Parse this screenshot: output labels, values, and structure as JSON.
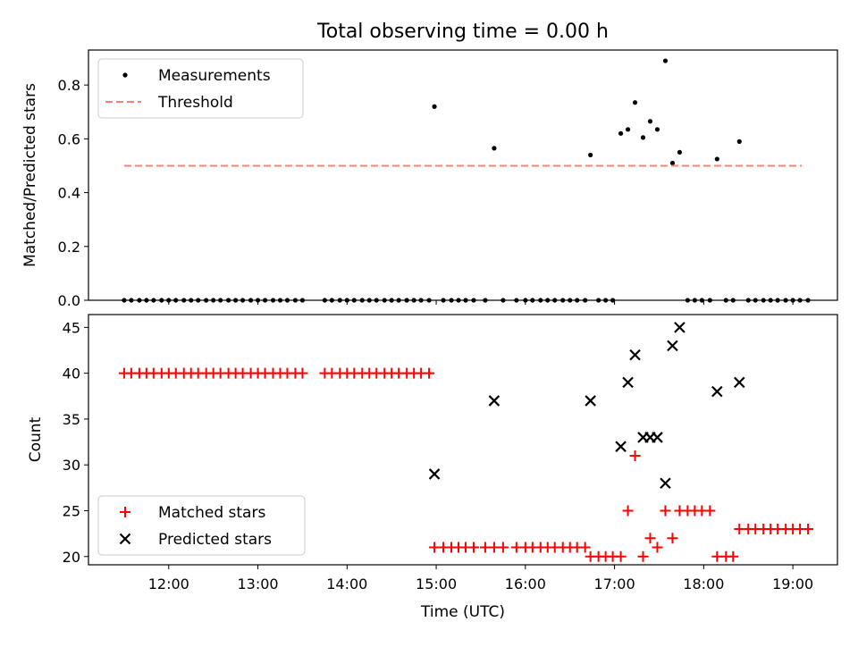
{
  "chart_data": [
    {
      "type": "scatter",
      "title": "Total observing time = 0.00 h",
      "ylabel": "Matched/Predicted stars",
      "xlabel": "",
      "ylim": [
        0,
        0.93
      ],
      "xlim": [
        11.1,
        19.5
      ],
      "yticks": [
        {
          "v": 0.0,
          "label": "0.0"
        },
        {
          "v": 0.2,
          "label": "0.2"
        },
        {
          "v": 0.4,
          "label": "0.4"
        },
        {
          "v": 0.6,
          "label": "0.6"
        },
        {
          "v": 0.8,
          "label": "0.8"
        }
      ],
      "legend": {
        "position": "top-left",
        "entries": [
          "Measurements",
          "Threshold"
        ]
      },
      "series": [
        {
          "name": "Measurements",
          "color": "#000000",
          "marker": "dot",
          "points": [
            [
              11.5,
              0
            ],
            [
              11.58,
              0
            ],
            [
              11.67,
              0
            ],
            [
              11.75,
              0
            ],
            [
              11.83,
              0
            ],
            [
              11.92,
              0
            ],
            [
              12.0,
              0
            ],
            [
              12.08,
              0
            ],
            [
              12.17,
              0
            ],
            [
              12.25,
              0
            ],
            [
              12.33,
              0
            ],
            [
              12.42,
              0
            ],
            [
              12.5,
              0
            ],
            [
              12.58,
              0
            ],
            [
              12.67,
              0
            ],
            [
              12.75,
              0
            ],
            [
              12.83,
              0
            ],
            [
              12.92,
              0
            ],
            [
              13.0,
              0
            ],
            [
              13.08,
              0
            ],
            [
              13.17,
              0
            ],
            [
              13.25,
              0
            ],
            [
              13.33,
              0
            ],
            [
              13.42,
              0
            ],
            [
              13.5,
              0
            ],
            [
              13.75,
              0
            ],
            [
              13.83,
              0
            ],
            [
              13.92,
              0
            ],
            [
              14.0,
              0
            ],
            [
              14.08,
              0
            ],
            [
              14.17,
              0
            ],
            [
              14.25,
              0
            ],
            [
              14.33,
              0
            ],
            [
              14.42,
              0
            ],
            [
              14.5,
              0
            ],
            [
              14.58,
              0
            ],
            [
              14.67,
              0
            ],
            [
              14.75,
              0
            ],
            [
              14.83,
              0
            ],
            [
              14.92,
              0
            ],
            [
              14.98,
              0.72
            ],
            [
              15.08,
              0
            ],
            [
              15.17,
              0
            ],
            [
              15.25,
              0
            ],
            [
              15.33,
              0
            ],
            [
              15.42,
              0
            ],
            [
              15.55,
              0
            ],
            [
              15.65,
              0.565
            ],
            [
              15.75,
              0
            ],
            [
              15.9,
              0
            ],
            [
              16.0,
              0
            ],
            [
              16.08,
              0
            ],
            [
              16.17,
              0
            ],
            [
              16.25,
              0
            ],
            [
              16.33,
              0
            ],
            [
              16.42,
              0
            ],
            [
              16.5,
              0
            ],
            [
              16.58,
              0
            ],
            [
              16.67,
              0
            ],
            [
              16.73,
              0.54
            ],
            [
              16.82,
              0
            ],
            [
              16.9,
              0
            ],
            [
              16.98,
              0
            ],
            [
              17.07,
              0.62
            ],
            [
              17.15,
              0.635
            ],
            [
              17.23,
              0.735
            ],
            [
              17.32,
              0.605
            ],
            [
              17.4,
              0.665
            ],
            [
              17.48,
              0.635
            ],
            [
              17.57,
              0.89
            ],
            [
              17.65,
              0.51
            ],
            [
              17.73,
              0.55
            ],
            [
              17.82,
              0
            ],
            [
              17.9,
              0
            ],
            [
              17.98,
              0
            ],
            [
              18.07,
              0
            ],
            [
              18.15,
              0.525
            ],
            [
              18.25,
              0
            ],
            [
              18.33,
              0
            ],
            [
              18.4,
              0.59
            ],
            [
              18.5,
              0
            ],
            [
              18.58,
              0
            ],
            [
              18.67,
              0
            ],
            [
              18.75,
              0
            ],
            [
              18.83,
              0
            ],
            [
              18.92,
              0
            ],
            [
              19.0,
              0
            ],
            [
              19.08,
              0
            ],
            [
              19.17,
              0
            ]
          ]
        },
        {
          "name": "Threshold",
          "color": "#ff7f7f",
          "style": "dashed",
          "x": [
            11.5,
            19.1
          ],
          "y": [
            0.5,
            0.5
          ]
        }
      ]
    },
    {
      "type": "scatter",
      "title": "",
      "xlabel": "Time (UTC)",
      "ylabel": "Count",
      "ylim": [
        19.1,
        46.4
      ],
      "xlim": [
        11.1,
        19.5
      ],
      "yticks": [
        {
          "v": 20,
          "label": "20"
        },
        {
          "v": 25,
          "label": "25"
        },
        {
          "v": 30,
          "label": "30"
        },
        {
          "v": 35,
          "label": "35"
        },
        {
          "v": 40,
          "label": "40"
        },
        {
          "v": 45,
          "label": "45"
        }
      ],
      "xticks": [
        {
          "v": 12,
          "label": "12:00"
        },
        {
          "v": 13,
          "label": "13:00"
        },
        {
          "v": 14,
          "label": "14:00"
        },
        {
          "v": 15,
          "label": "15:00"
        },
        {
          "v": 16,
          "label": "16:00"
        },
        {
          "v": 17,
          "label": "17:00"
        },
        {
          "v": 18,
          "label": "18:00"
        },
        {
          "v": 19,
          "label": "19:00"
        }
      ],
      "legend": {
        "position": "bottom-left",
        "entries": [
          "Matched stars",
          "Predicted stars"
        ]
      },
      "series": [
        {
          "name": "Matched stars",
          "color": "#ff0000",
          "marker": "plus",
          "points": [
            [
              11.5,
              40
            ],
            [
              11.58,
              40
            ],
            [
              11.67,
              40
            ],
            [
              11.75,
              40
            ],
            [
              11.83,
              40
            ],
            [
              11.92,
              40
            ],
            [
              12.0,
              40
            ],
            [
              12.08,
              40
            ],
            [
              12.17,
              40
            ],
            [
              12.25,
              40
            ],
            [
              12.33,
              40
            ],
            [
              12.42,
              40
            ],
            [
              12.5,
              40
            ],
            [
              12.58,
              40
            ],
            [
              12.67,
              40
            ],
            [
              12.75,
              40
            ],
            [
              12.83,
              40
            ],
            [
              12.92,
              40
            ],
            [
              13.0,
              40
            ],
            [
              13.08,
              40
            ],
            [
              13.17,
              40
            ],
            [
              13.25,
              40
            ],
            [
              13.33,
              40
            ],
            [
              13.42,
              40
            ],
            [
              13.5,
              40
            ],
            [
              13.75,
              40
            ],
            [
              13.83,
              40
            ],
            [
              13.92,
              40
            ],
            [
              14.0,
              40
            ],
            [
              14.08,
              40
            ],
            [
              14.17,
              40
            ],
            [
              14.25,
              40
            ],
            [
              14.33,
              40
            ],
            [
              14.42,
              40
            ],
            [
              14.5,
              40
            ],
            [
              14.58,
              40
            ],
            [
              14.67,
              40
            ],
            [
              14.75,
              40
            ],
            [
              14.83,
              40
            ],
            [
              14.92,
              40
            ],
            [
              14.98,
              21
            ],
            [
              15.08,
              21
            ],
            [
              15.17,
              21
            ],
            [
              15.25,
              21
            ],
            [
              15.33,
              21
            ],
            [
              15.42,
              21
            ],
            [
              15.55,
              21
            ],
            [
              15.65,
              21
            ],
            [
              15.75,
              21
            ],
            [
              15.9,
              21
            ],
            [
              16.0,
              21
            ],
            [
              16.08,
              21
            ],
            [
              16.17,
              21
            ],
            [
              16.25,
              21
            ],
            [
              16.33,
              21
            ],
            [
              16.42,
              21
            ],
            [
              16.5,
              21
            ],
            [
              16.58,
              21
            ],
            [
              16.67,
              21
            ],
            [
              16.73,
              20
            ],
            [
              16.82,
              20
            ],
            [
              16.9,
              20
            ],
            [
              16.98,
              20
            ],
            [
              17.07,
              20
            ],
            [
              17.15,
              25
            ],
            [
              17.23,
              31
            ],
            [
              17.32,
              20
            ],
            [
              17.4,
              22
            ],
            [
              17.48,
              21
            ],
            [
              17.57,
              25
            ],
            [
              17.65,
              22
            ],
            [
              17.73,
              25
            ],
            [
              17.82,
              25
            ],
            [
              17.9,
              25
            ],
            [
              17.98,
              25
            ],
            [
              18.07,
              25
            ],
            [
              18.15,
              20
            ],
            [
              18.25,
              20
            ],
            [
              18.33,
              20
            ],
            [
              18.4,
              23
            ],
            [
              18.5,
              23
            ],
            [
              18.58,
              23
            ],
            [
              18.67,
              23
            ],
            [
              18.75,
              23
            ],
            [
              18.83,
              23
            ],
            [
              18.92,
              23
            ],
            [
              19.0,
              23
            ],
            [
              19.08,
              23
            ],
            [
              19.17,
              23
            ]
          ]
        },
        {
          "name": "Predicted stars",
          "color": "#000000",
          "marker": "x",
          "points": [
            [
              14.98,
              29
            ],
            [
              15.65,
              37
            ],
            [
              16.73,
              37
            ],
            [
              17.07,
              32
            ],
            [
              17.15,
              39
            ],
            [
              17.23,
              42
            ],
            [
              17.32,
              33
            ],
            [
              17.4,
              33
            ],
            [
              17.48,
              33
            ],
            [
              17.57,
              28
            ],
            [
              17.65,
              43
            ],
            [
              17.73,
              45
            ],
            [
              18.15,
              38
            ],
            [
              18.4,
              39
            ]
          ]
        }
      ]
    }
  ]
}
